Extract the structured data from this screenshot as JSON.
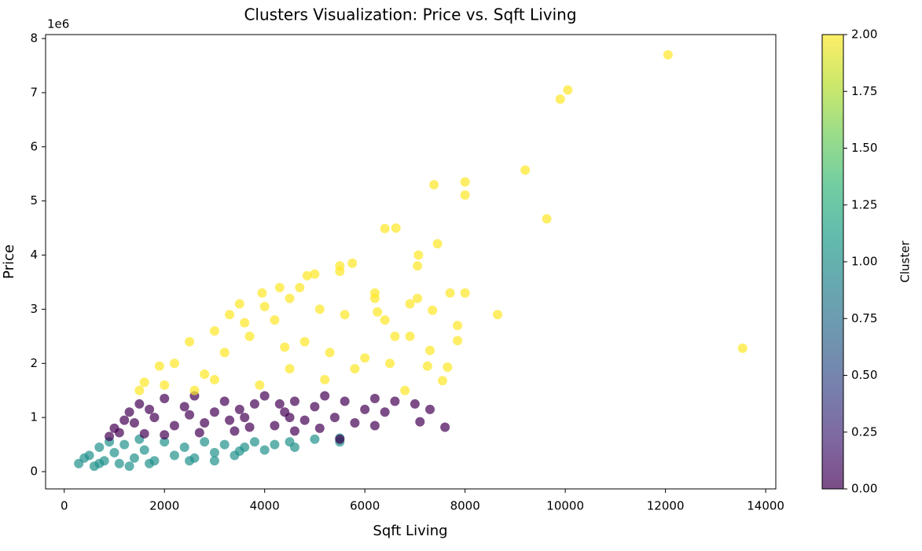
{
  "chart_data": {
    "type": "scatter",
    "title": "Clusters Visualization: Price vs. Sqft Living",
    "x_label": "Sqft Living",
    "y_label": "Price",
    "y_offset_label": "1e6",
    "xlim": [
      -372,
      14202
    ],
    "ylim": [
      -0.319,
      8.073
    ],
    "xticks": [
      0,
      2000,
      4000,
      6000,
      8000,
      10000,
      12000,
      14000
    ],
    "yticks": [
      0,
      1,
      2,
      3,
      4,
      5,
      6,
      7,
      8
    ],
    "alpha": 0.7,
    "colorbar": {
      "label": "Cluster",
      "lim": [
        0,
        2
      ],
      "colors": [
        "#440154",
        "#482878",
        "#3e4989",
        "#31688e",
        "#26828e",
        "#1f9e89",
        "#35b779",
        "#6ece58",
        "#b5de2b",
        "#fde725"
      ],
      "ticks": [
        {
          "value": 0,
          "label": "0.00"
        },
        {
          "value": 0.25,
          "label": "0.25"
        },
        {
          "value": 0.5,
          "label": "0.50"
        },
        {
          "value": 0.75,
          "label": "0.75"
        },
        {
          "value": 1,
          "label": "1.00"
        },
        {
          "value": 1.25,
          "label": "1.25"
        },
        {
          "value": 1.5,
          "label": "1.50"
        },
        {
          "value": 1.75,
          "label": "1.75"
        },
        {
          "value": 2,
          "label": "2.00"
        }
      ]
    },
    "clusters": [
      {
        "cluster": 1,
        "color": "#21918c",
        "x": [
          290,
          400,
          500,
          600,
          700,
          800,
          900,
          1000,
          1100,
          1200,
          1400,
          1500,
          1600,
          1800,
          2000,
          2200,
          2400,
          2600,
          2800,
          3000,
          3200,
          3400,
          3600,
          3800,
          4000,
          4200,
          4500,
          5000,
          5500,
          5500,
          2500,
          1300,
          700,
          1700,
          3000,
          4600,
          3500
        ],
        "y": [
          0.15,
          0.25,
          0.3,
          0.1,
          0.45,
          0.2,
          0.55,
          0.35,
          0.15,
          0.5,
          0.25,
          0.6,
          0.4,
          0.2,
          0.55,
          0.3,
          0.45,
          0.25,
          0.55,
          0.35,
          0.5,
          0.3,
          0.45,
          0.55,
          0.4,
          0.5,
          0.55,
          0.6,
          0.55,
          0.62,
          0.2,
          0.1,
          0.15,
          0.15,
          0.2,
          0.45,
          0.38
        ]
      },
      {
        "cluster": 0,
        "color": "#440154",
        "x": [
          900,
          1000,
          1200,
          1300,
          1500,
          1600,
          1800,
          2000,
          2200,
          2400,
          2600,
          2800,
          3000,
          3200,
          3400,
          3600,
          3800,
          4000,
          4200,
          4400,
          4600,
          4800,
          5000,
          5200,
          5400,
          5600,
          5800,
          6000,
          6200,
          6400,
          6600,
          7000,
          7300,
          7100,
          7600,
          6200,
          5500,
          4600,
          2000,
          1400,
          2500,
          3500,
          4500,
          1100,
          2700,
          3700,
          5100,
          1700,
          3300,
          4300
        ],
        "y": [
          0.65,
          0.8,
          0.95,
          1.1,
          1.25,
          0.7,
          1.0,
          1.35,
          0.85,
          1.2,
          1.4,
          0.9,
          1.1,
          1.3,
          0.75,
          1.0,
          1.25,
          1.4,
          0.85,
          1.1,
          1.3,
          0.95,
          1.2,
          1.4,
          1.0,
          1.3,
          0.9,
          1.15,
          1.35,
          1.1,
          1.3,
          1.25,
          1.15,
          0.92,
          0.82,
          0.85,
          0.6,
          0.75,
          0.68,
          0.9,
          1.05,
          1.15,
          1.0,
          0.72,
          0.72,
          0.82,
          0.8,
          1.15,
          0.95,
          1.25
        ]
      },
      {
        "cluster": 2,
        "color": "#fde725",
        "x": [
          12050,
          10050,
          9900,
          9200,
          7380,
          8000,
          8000,
          9630,
          6400,
          6620,
          7450,
          7070,
          7050,
          13540,
          8650,
          7700,
          8000,
          7850,
          7850,
          7650,
          7550,
          7300,
          7050,
          6900,
          7350,
          6200,
          6200,
          6250,
          6400,
          6600,
          6900,
          6500,
          6800,
          7250,
          5750,
          5500,
          5500,
          5000,
          4850,
          4700,
          4300,
          3950,
          4500,
          3500,
          3300,
          3000,
          2500,
          2200,
          1900,
          1600,
          1500,
          2000,
          2800,
          3200,
          3700,
          4200,
          4800,
          5300,
          5800,
          5200,
          4500,
          3900,
          3000,
          2600,
          5600,
          6000,
          4000,
          3600,
          5100,
          4400
        ],
        "y": [
          7.7,
          7.05,
          6.88,
          5.57,
          5.3,
          5.35,
          5.11,
          4.67,
          4.49,
          4.5,
          4.21,
          4.0,
          3.8,
          2.28,
          2.9,
          3.3,
          3.3,
          2.7,
          2.42,
          1.93,
          1.68,
          2.24,
          3.2,
          3.1,
          2.98,
          3.3,
          3.2,
          2.95,
          2.8,
          2.5,
          2.5,
          2.0,
          1.5,
          1.95,
          3.85,
          3.8,
          3.7,
          3.65,
          3.62,
          3.4,
          3.4,
          3.3,
          3.2,
          3.1,
          2.9,
          2.6,
          2.4,
          2.0,
          1.95,
          1.65,
          1.5,
          1.6,
          1.8,
          2.2,
          2.5,
          2.8,
          2.4,
          2.2,
          1.9,
          1.7,
          1.9,
          1.6,
          1.7,
          1.5,
          2.9,
          2.1,
          3.05,
          2.75,
          3.0,
          2.3
        ]
      }
    ]
  }
}
